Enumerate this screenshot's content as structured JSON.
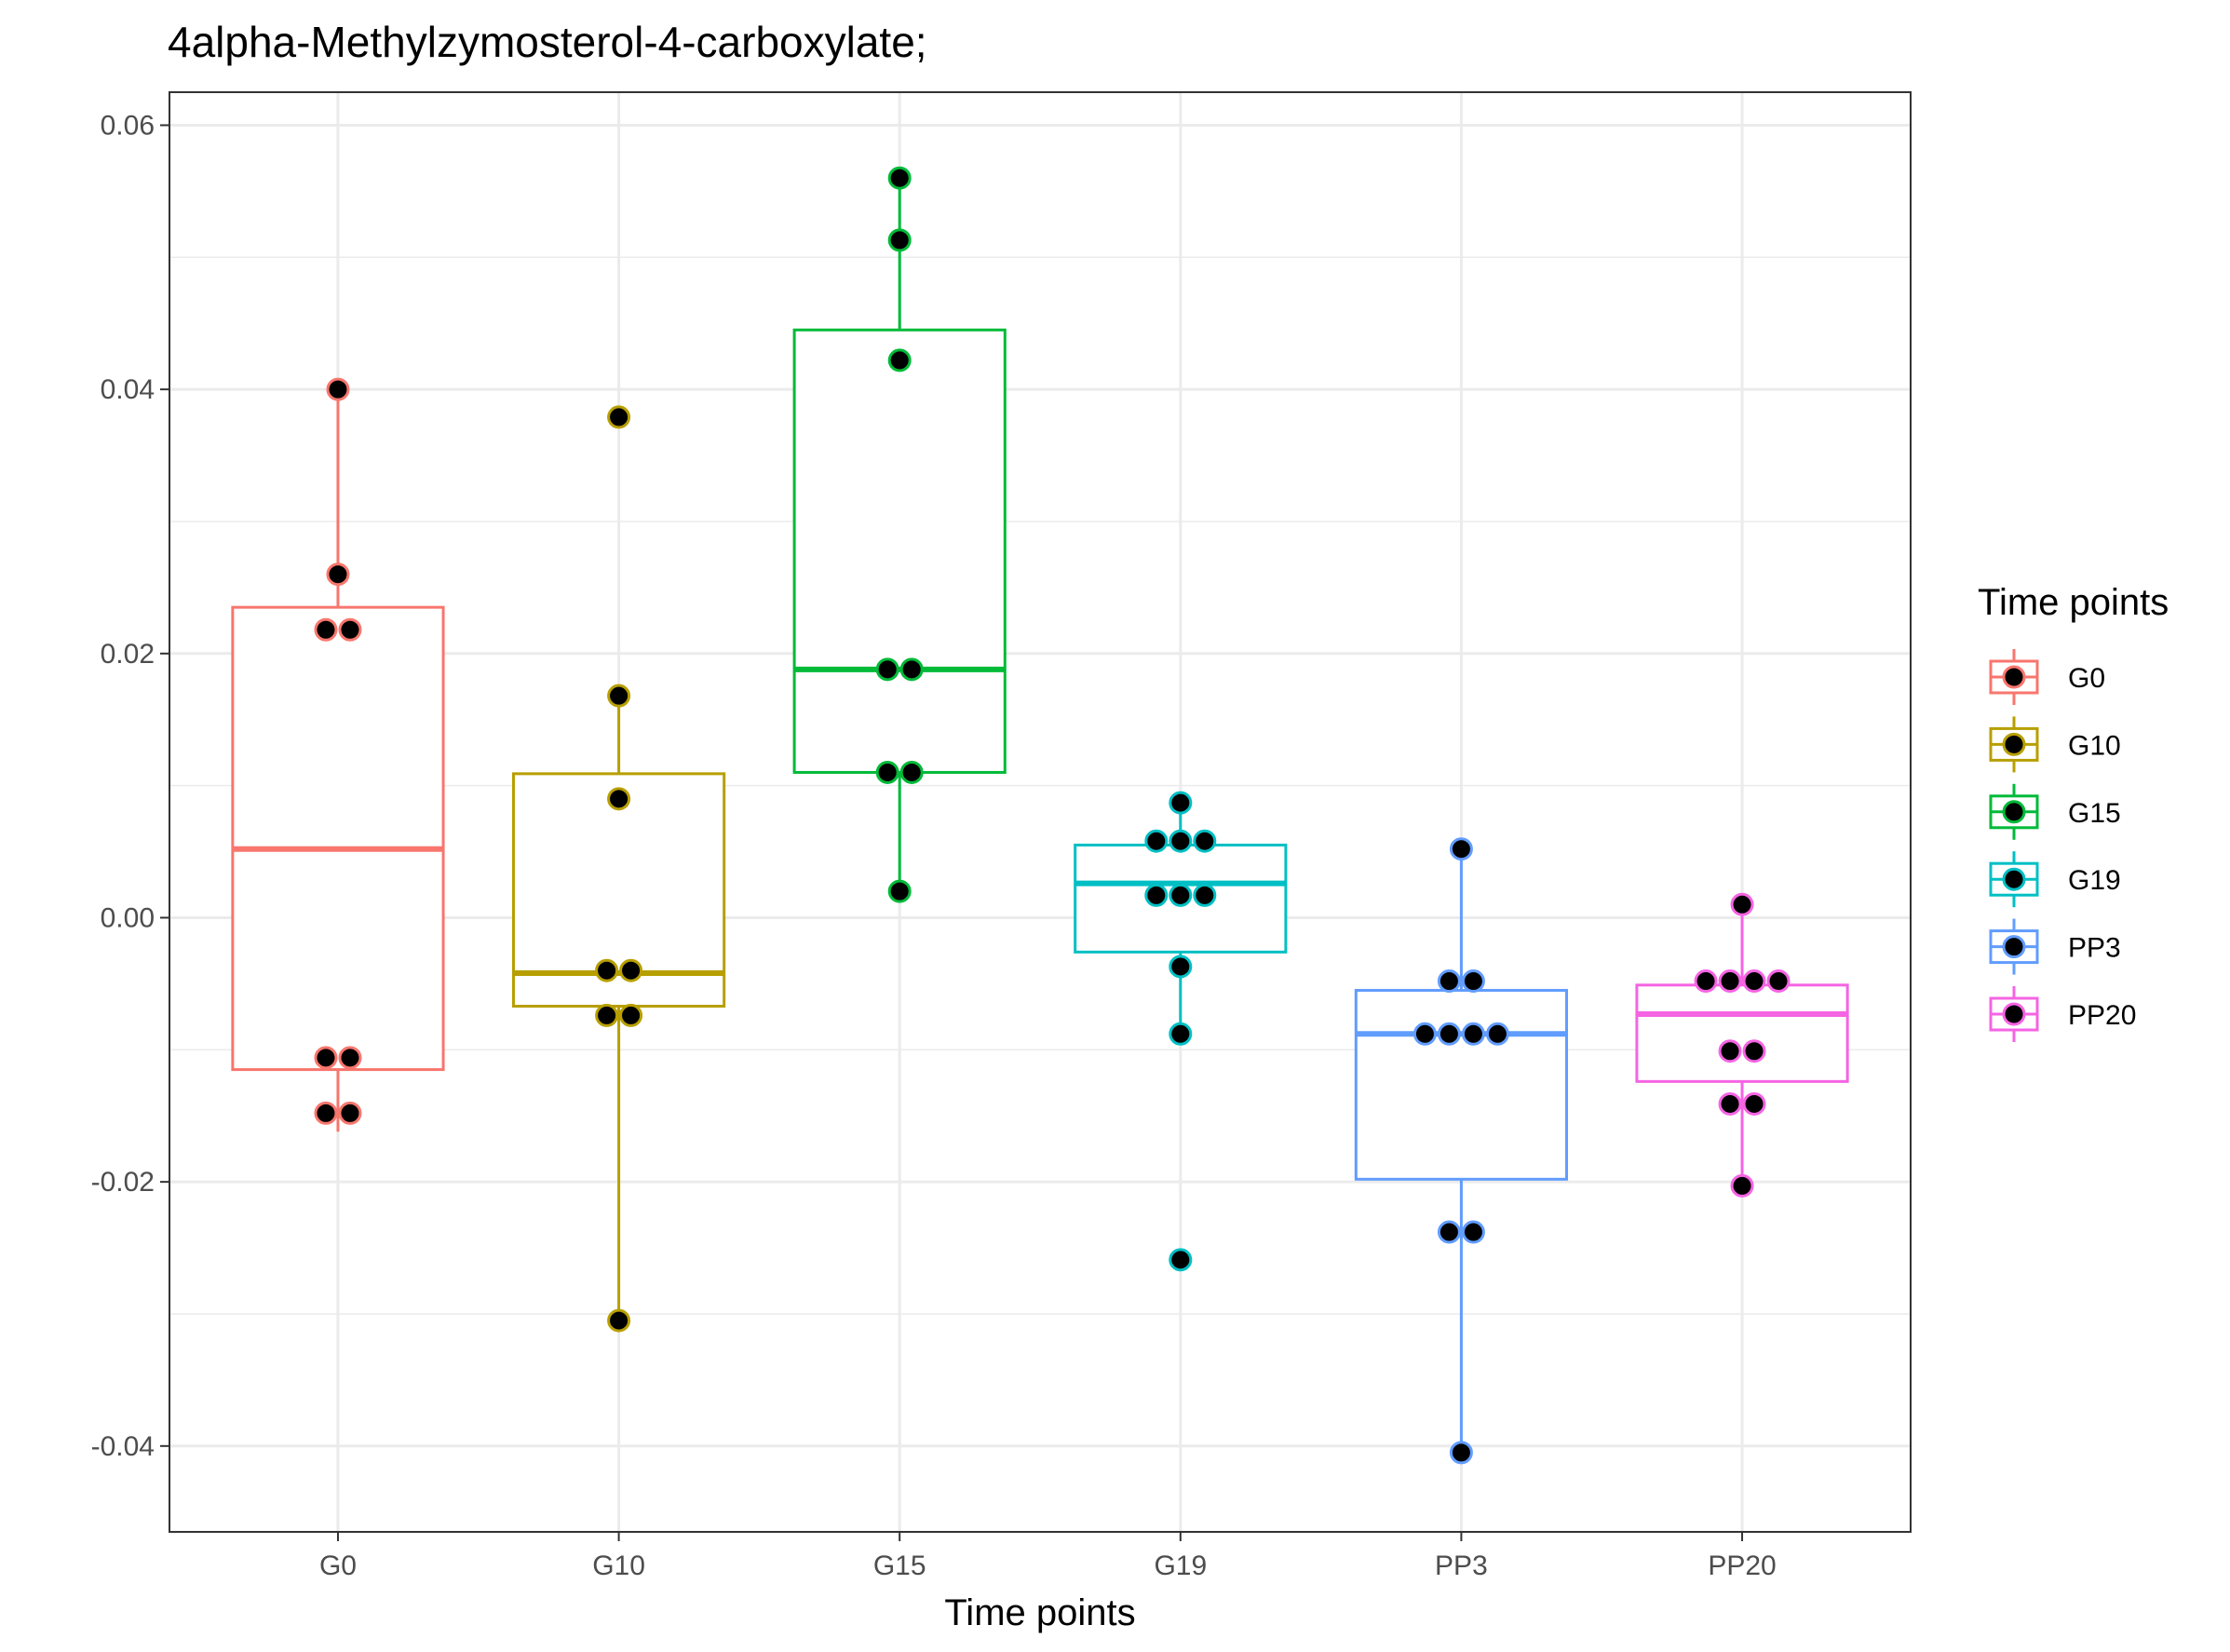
{
  "chart_data": {
    "type": "box",
    "title": "4alpha-Methylzymosterol-4-carboxylate;",
    "xlabel": "Time points",
    "ylabel": "",
    "ylim": [
      -0.0465,
      0.0625
    ],
    "yticks": [
      -0.04,
      -0.02,
      0.0,
      0.02,
      0.04,
      0.06
    ],
    "ytick_labels": [
      "-0.04",
      "-0.02",
      "0.00",
      "0.02",
      "0.04",
      "0.06"
    ],
    "grid": true,
    "legend": {
      "title": "Time points",
      "position": "right"
    },
    "categories": [
      "G0",
      "G10",
      "G15",
      "G19",
      "PP3",
      "PP20"
    ],
    "series": [
      {
        "name": "G0",
        "color": "#F8766D",
        "box": {
          "whisker_low": -0.0162,
          "q1": -0.0115,
          "median": 0.0052,
          "q3": 0.0235,
          "whisker_high": 0.04
        },
        "points": [
          0.04,
          0.026,
          0.0218,
          0.0218,
          -0.0106,
          -0.0106,
          -0.0148,
          -0.0148
        ]
      },
      {
        "name": "G10",
        "color": "#B79F00",
        "box": {
          "whisker_low": -0.0305,
          "q1": -0.0067,
          "median": -0.0042,
          "q3": 0.0109,
          "whisker_high": 0.0168
        },
        "points": [
          0.0379,
          0.0168,
          0.009,
          -0.004,
          -0.004,
          -0.0074,
          -0.0074,
          -0.0305
        ]
      },
      {
        "name": "G15",
        "color": "#00BA38",
        "box": {
          "whisker_low": 0.002,
          "q1": 0.011,
          "median": 0.0188,
          "q3": 0.0445,
          "whisker_high": 0.056
        },
        "points": [
          0.056,
          0.0513,
          0.0422,
          0.0188,
          0.0188,
          0.011,
          0.011,
          0.002
        ]
      },
      {
        "name": "G19",
        "color": "#00BFC4",
        "box": {
          "whisker_low": -0.0088,
          "q1": -0.0026,
          "median": 0.0026,
          "q3": 0.0055,
          "whisker_high": 0.0087
        },
        "points": [
          0.0087,
          0.0058,
          0.0058,
          0.0058,
          0.0017,
          0.0017,
          0.0017,
          -0.0037,
          -0.0088,
          -0.0259
        ]
      },
      {
        "name": "PP3",
        "color": "#619CFF",
        "box": {
          "whisker_low": -0.0405,
          "q1": -0.0198,
          "median": -0.0088,
          "q3": -0.0055,
          "whisker_high": 0.0052
        },
        "points": [
          0.0052,
          -0.0048,
          -0.0048,
          -0.0088,
          -0.0088,
          -0.0088,
          -0.0088,
          -0.0238,
          -0.0238,
          -0.0405
        ]
      },
      {
        "name": "PP20",
        "color": "#F564E3",
        "box": {
          "whisker_low": -0.0203,
          "q1": -0.0124,
          "median": -0.0073,
          "q3": -0.0051,
          "whisker_high": 0.001
        },
        "points": [
          0.001,
          -0.0048,
          -0.0048,
          -0.0048,
          -0.0048,
          -0.0101,
          -0.0101,
          -0.0141,
          -0.0141,
          -0.0203
        ]
      }
    ]
  }
}
